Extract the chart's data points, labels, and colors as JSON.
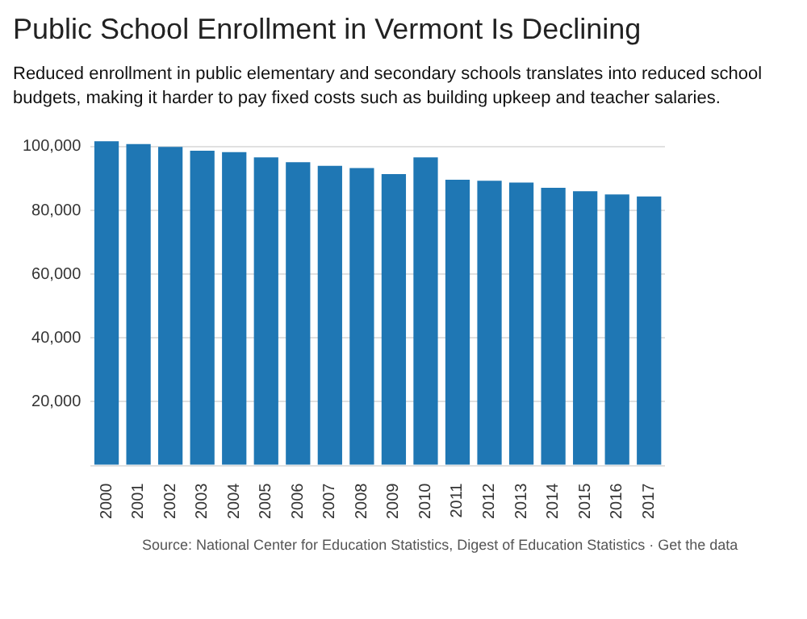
{
  "chart_data": {
    "type": "bar",
    "title": "Public School Enrollment in Vermont Is Declining",
    "subtitle": "Reduced enrollment in public elementary and secondary schools translates into reduced school budgets, making it harder to pay fixed costs such as building upkeep and teacher salaries.",
    "categories": [
      "2000",
      "2001",
      "2002",
      "2003",
      "2004",
      "2005",
      "2006",
      "2007",
      "2008",
      "2009",
      "2010",
      "2011",
      "2012",
      "2013",
      "2014",
      "2015",
      "2016",
      "2017"
    ],
    "values": [
      101700,
      100800,
      99900,
      98700,
      98300,
      96600,
      95100,
      94000,
      93300,
      91400,
      96600,
      89600,
      89300,
      88700,
      87100,
      86000,
      85000,
      84400
    ],
    "color": "#1f77b4",
    "ylim": [
      0,
      102000
    ],
    "yticks": [
      {
        "value": 0,
        "label": null
      },
      {
        "value": 20000,
        "label": "20,000"
      },
      {
        "value": 40000,
        "label": "40,000"
      },
      {
        "value": 60000,
        "label": "60,000"
      },
      {
        "value": 80000,
        "label": "80,000"
      },
      {
        "value": 100000,
        "label": "100,000"
      }
    ],
    "grid": "y",
    "annotations": [
      "Source: National Center for Education Statistics, Digest of Education Statistics · Get the data"
    ]
  }
}
